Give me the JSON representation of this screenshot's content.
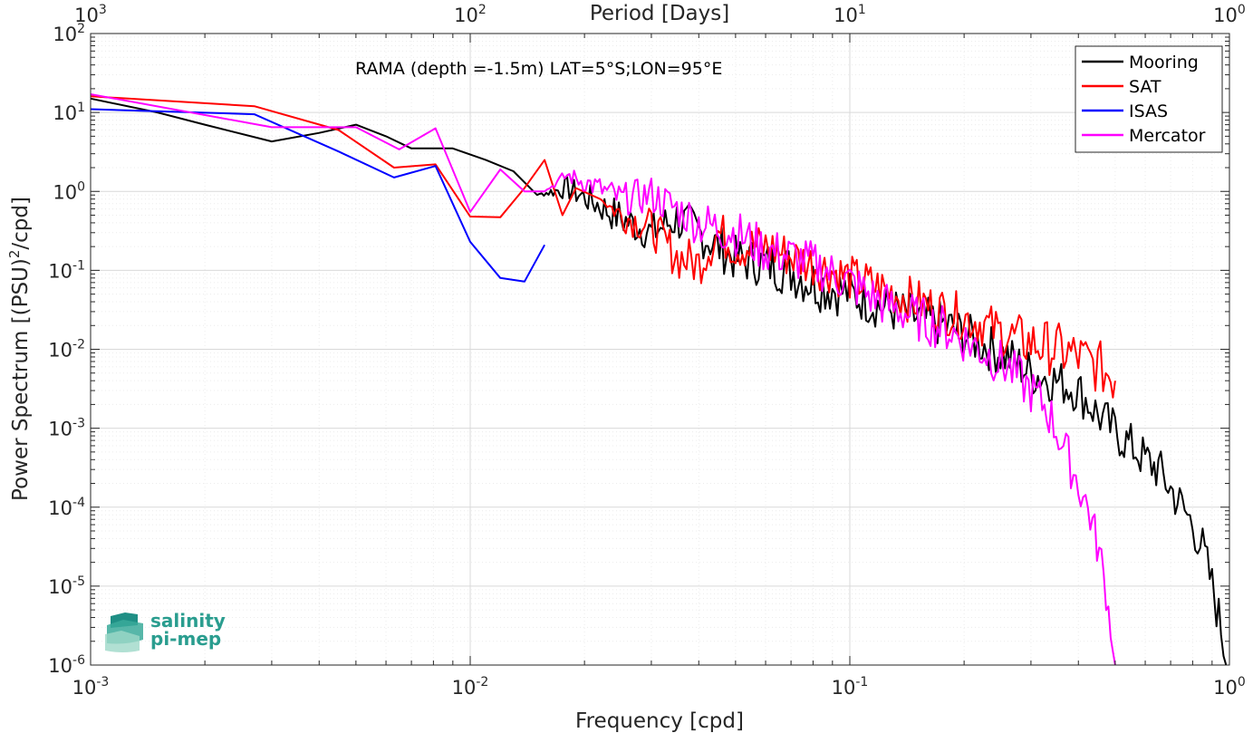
{
  "chart_data": {
    "type": "line",
    "xscale": "log",
    "yscale": "log",
    "xlim": [
      0.001,
      1
    ],
    "ylim": [
      1e-06,
      100
    ],
    "grid": true,
    "minor_grid": true,
    "xlabel": "Frequency [cpd]",
    "ylabel_prefix": "Power Spectrum [(PSU)",
    "ylabel_sup": "2",
    "ylabel_suffix": "/cpd]",
    "top_axis_label": "Period [Days]",
    "annotation": "RAMA (depth =-1.5m) LAT=5°S;LON=95°E",
    "x_ticks": [
      0.001,
      0.01,
      0.1,
      1
    ],
    "x_tick_labels": [
      {
        "base": "10",
        "exp": "-3"
      },
      {
        "base": "10",
        "exp": "-2"
      },
      {
        "base": "10",
        "exp": "-1"
      },
      {
        "base": "10",
        "exp": "0"
      }
    ],
    "top_tick_labels": [
      {
        "base": "10",
        "exp": "3"
      },
      {
        "base": "10",
        "exp": "2"
      },
      {
        "base": "10",
        "exp": "1"
      },
      {
        "base": "10",
        "exp": "0"
      }
    ],
    "y_ticks": [
      1e-06,
      1e-05,
      0.0001,
      0.001,
      0.01,
      0.1,
      1,
      10,
      100
    ],
    "y_tick_labels": [
      {
        "base": "10",
        "exp": "-6"
      },
      {
        "base": "10",
        "exp": "-5"
      },
      {
        "base": "10",
        "exp": "-4"
      },
      {
        "base": "10",
        "exp": "-3"
      },
      {
        "base": "10",
        "exp": "-2"
      },
      {
        "base": "10",
        "exp": "-1"
      },
      {
        "base": "10",
        "exp": "0"
      },
      {
        "base": "10",
        "exp": "1"
      },
      {
        "base": "10",
        "exp": "2"
      }
    ],
    "legend_position": "top-right",
    "series": [
      {
        "name": "Mooring",
        "color": "#000000",
        "x": [
          0.001,
          0.0015,
          0.002,
          0.003,
          0.004,
          0.005,
          0.006,
          0.007,
          0.009,
          0.011,
          0.013,
          0.015,
          0.018,
          0.021,
          0.025,
          0.03,
          0.035,
          0.04,
          0.05,
          0.06,
          0.07,
          0.08,
          0.09,
          0.1,
          0.12,
          0.15,
          0.18,
          0.22,
          0.26,
          0.3,
          0.35,
          0.4,
          0.45,
          0.5,
          0.55,
          0.6,
          0.65,
          0.7,
          0.75,
          0.8,
          0.85,
          0.9,
          0.95,
          0.98
        ],
        "y": [
          15,
          10,
          7,
          4.3,
          5.5,
          7,
          5,
          3.5,
          3.5,
          2.5,
          1.8,
          0.9,
          1.1,
          0.75,
          0.45,
          0.3,
          0.45,
          0.3,
          0.14,
          0.12,
          0.1,
          0.07,
          0.06,
          0.05,
          0.035,
          0.025,
          0.02,
          0.012,
          0.008,
          0.005,
          0.004,
          0.003,
          0.0015,
          0.0009,
          0.0006,
          0.0004,
          0.0003,
          0.00017,
          0.0001,
          6e-05,
          3e-05,
          1e-05,
          3e-06,
          1e-06
        ],
        "jitter": [
          0,
          0,
          0,
          0,
          0,
          0,
          0,
          0,
          0,
          0,
          0,
          0,
          0.15,
          0.2,
          0.25,
          0.25,
          0.3,
          0.3,
          0.3,
          0.3,
          0.35,
          0.35,
          0.35,
          0.3,
          0.3,
          0.3,
          0.3,
          0.3,
          0.3,
          0.3,
          0.3,
          0.3,
          0.3,
          0.3,
          0.3,
          0.3,
          0.3,
          0.3,
          0.3,
          0.3,
          0.3,
          0.3,
          0.3,
          0.2
        ]
      },
      {
        "name": "SAT",
        "color": "#ff0000",
        "x": [
          0.001,
          0.0027,
          0.0045,
          0.0063,
          0.0081,
          0.01,
          0.012,
          0.0139,
          0.0157,
          0.0175,
          0.019,
          0.022,
          0.025,
          0.03,
          0.035,
          0.04,
          0.045,
          0.05,
          0.06,
          0.07,
          0.08,
          0.1,
          0.12,
          0.15,
          0.18,
          0.22,
          0.26,
          0.3,
          0.35,
          0.4,
          0.45,
          0.48,
          0.5
        ],
        "y": [
          16,
          12,
          6,
          2,
          2.2,
          0.48,
          0.47,
          1.1,
          2.5,
          0.5,
          1.1,
          0.8,
          0.5,
          0.35,
          0.15,
          0.12,
          0.3,
          0.2,
          0.2,
          0.15,
          0.12,
          0.08,
          0.06,
          0.04,
          0.03,
          0.022,
          0.015,
          0.012,
          0.01,
          0.008,
          0.006,
          0.005,
          0.004
        ],
        "jitter": [
          0,
          0,
          0,
          0,
          0,
          0,
          0,
          0,
          0,
          0,
          0,
          0,
          0.2,
          0.25,
          0.3,
          0.3,
          0.3,
          0.3,
          0.3,
          0.3,
          0.3,
          0.3,
          0.3,
          0.3,
          0.3,
          0.3,
          0.3,
          0.35,
          0.35,
          0.35,
          0.35,
          0.35,
          0.35
        ]
      },
      {
        "name": "ISAS",
        "color": "#0000ff",
        "x": [
          0.001,
          0.0027,
          0.0045,
          0.0063,
          0.0081,
          0.01,
          0.012,
          0.0139,
          0.0157
        ],
        "y": [
          11,
          9.5,
          3.2,
          1.5,
          2.1,
          0.23,
          0.08,
          0.072,
          0.21
        ],
        "jitter": [
          0,
          0,
          0,
          0,
          0,
          0,
          0,
          0,
          0
        ]
      },
      {
        "name": "Mercator",
        "color": "#ff00ff",
        "x": [
          0.001,
          0.003,
          0.005,
          0.0065,
          0.0081,
          0.01,
          0.012,
          0.0139,
          0.0157,
          0.018,
          0.021,
          0.025,
          0.03,
          0.035,
          0.04,
          0.05,
          0.06,
          0.07,
          0.08,
          0.1,
          0.12,
          0.15,
          0.18,
          0.22,
          0.26,
          0.3,
          0.33,
          0.36,
          0.4,
          0.43,
          0.46,
          0.48,
          0.5
        ],
        "y": [
          17,
          6.5,
          6.5,
          3.4,
          6.3,
          0.55,
          1.9,
          1.0,
          1.0,
          1.6,
          1.2,
          0.8,
          0.9,
          0.6,
          0.4,
          0.3,
          0.18,
          0.15,
          0.12,
          0.07,
          0.04,
          0.025,
          0.018,
          0.01,
          0.006,
          0.003,
          0.0018,
          0.0007,
          0.0002,
          8e-05,
          2e-05,
          5e-06,
          1e-06
        ],
        "jitter": [
          0,
          0,
          0,
          0,
          0,
          0,
          0,
          0,
          0,
          0.1,
          0.15,
          0.2,
          0.25,
          0.25,
          0.3,
          0.3,
          0.3,
          0.3,
          0.3,
          0.3,
          0.3,
          0.3,
          0.3,
          0.3,
          0.3,
          0.3,
          0.3,
          0.3,
          0.3,
          0.3,
          0.25,
          0.2,
          0.1
        ]
      }
    ]
  },
  "logo": {
    "line1": "salinity",
    "line2": "pi-mep"
  }
}
